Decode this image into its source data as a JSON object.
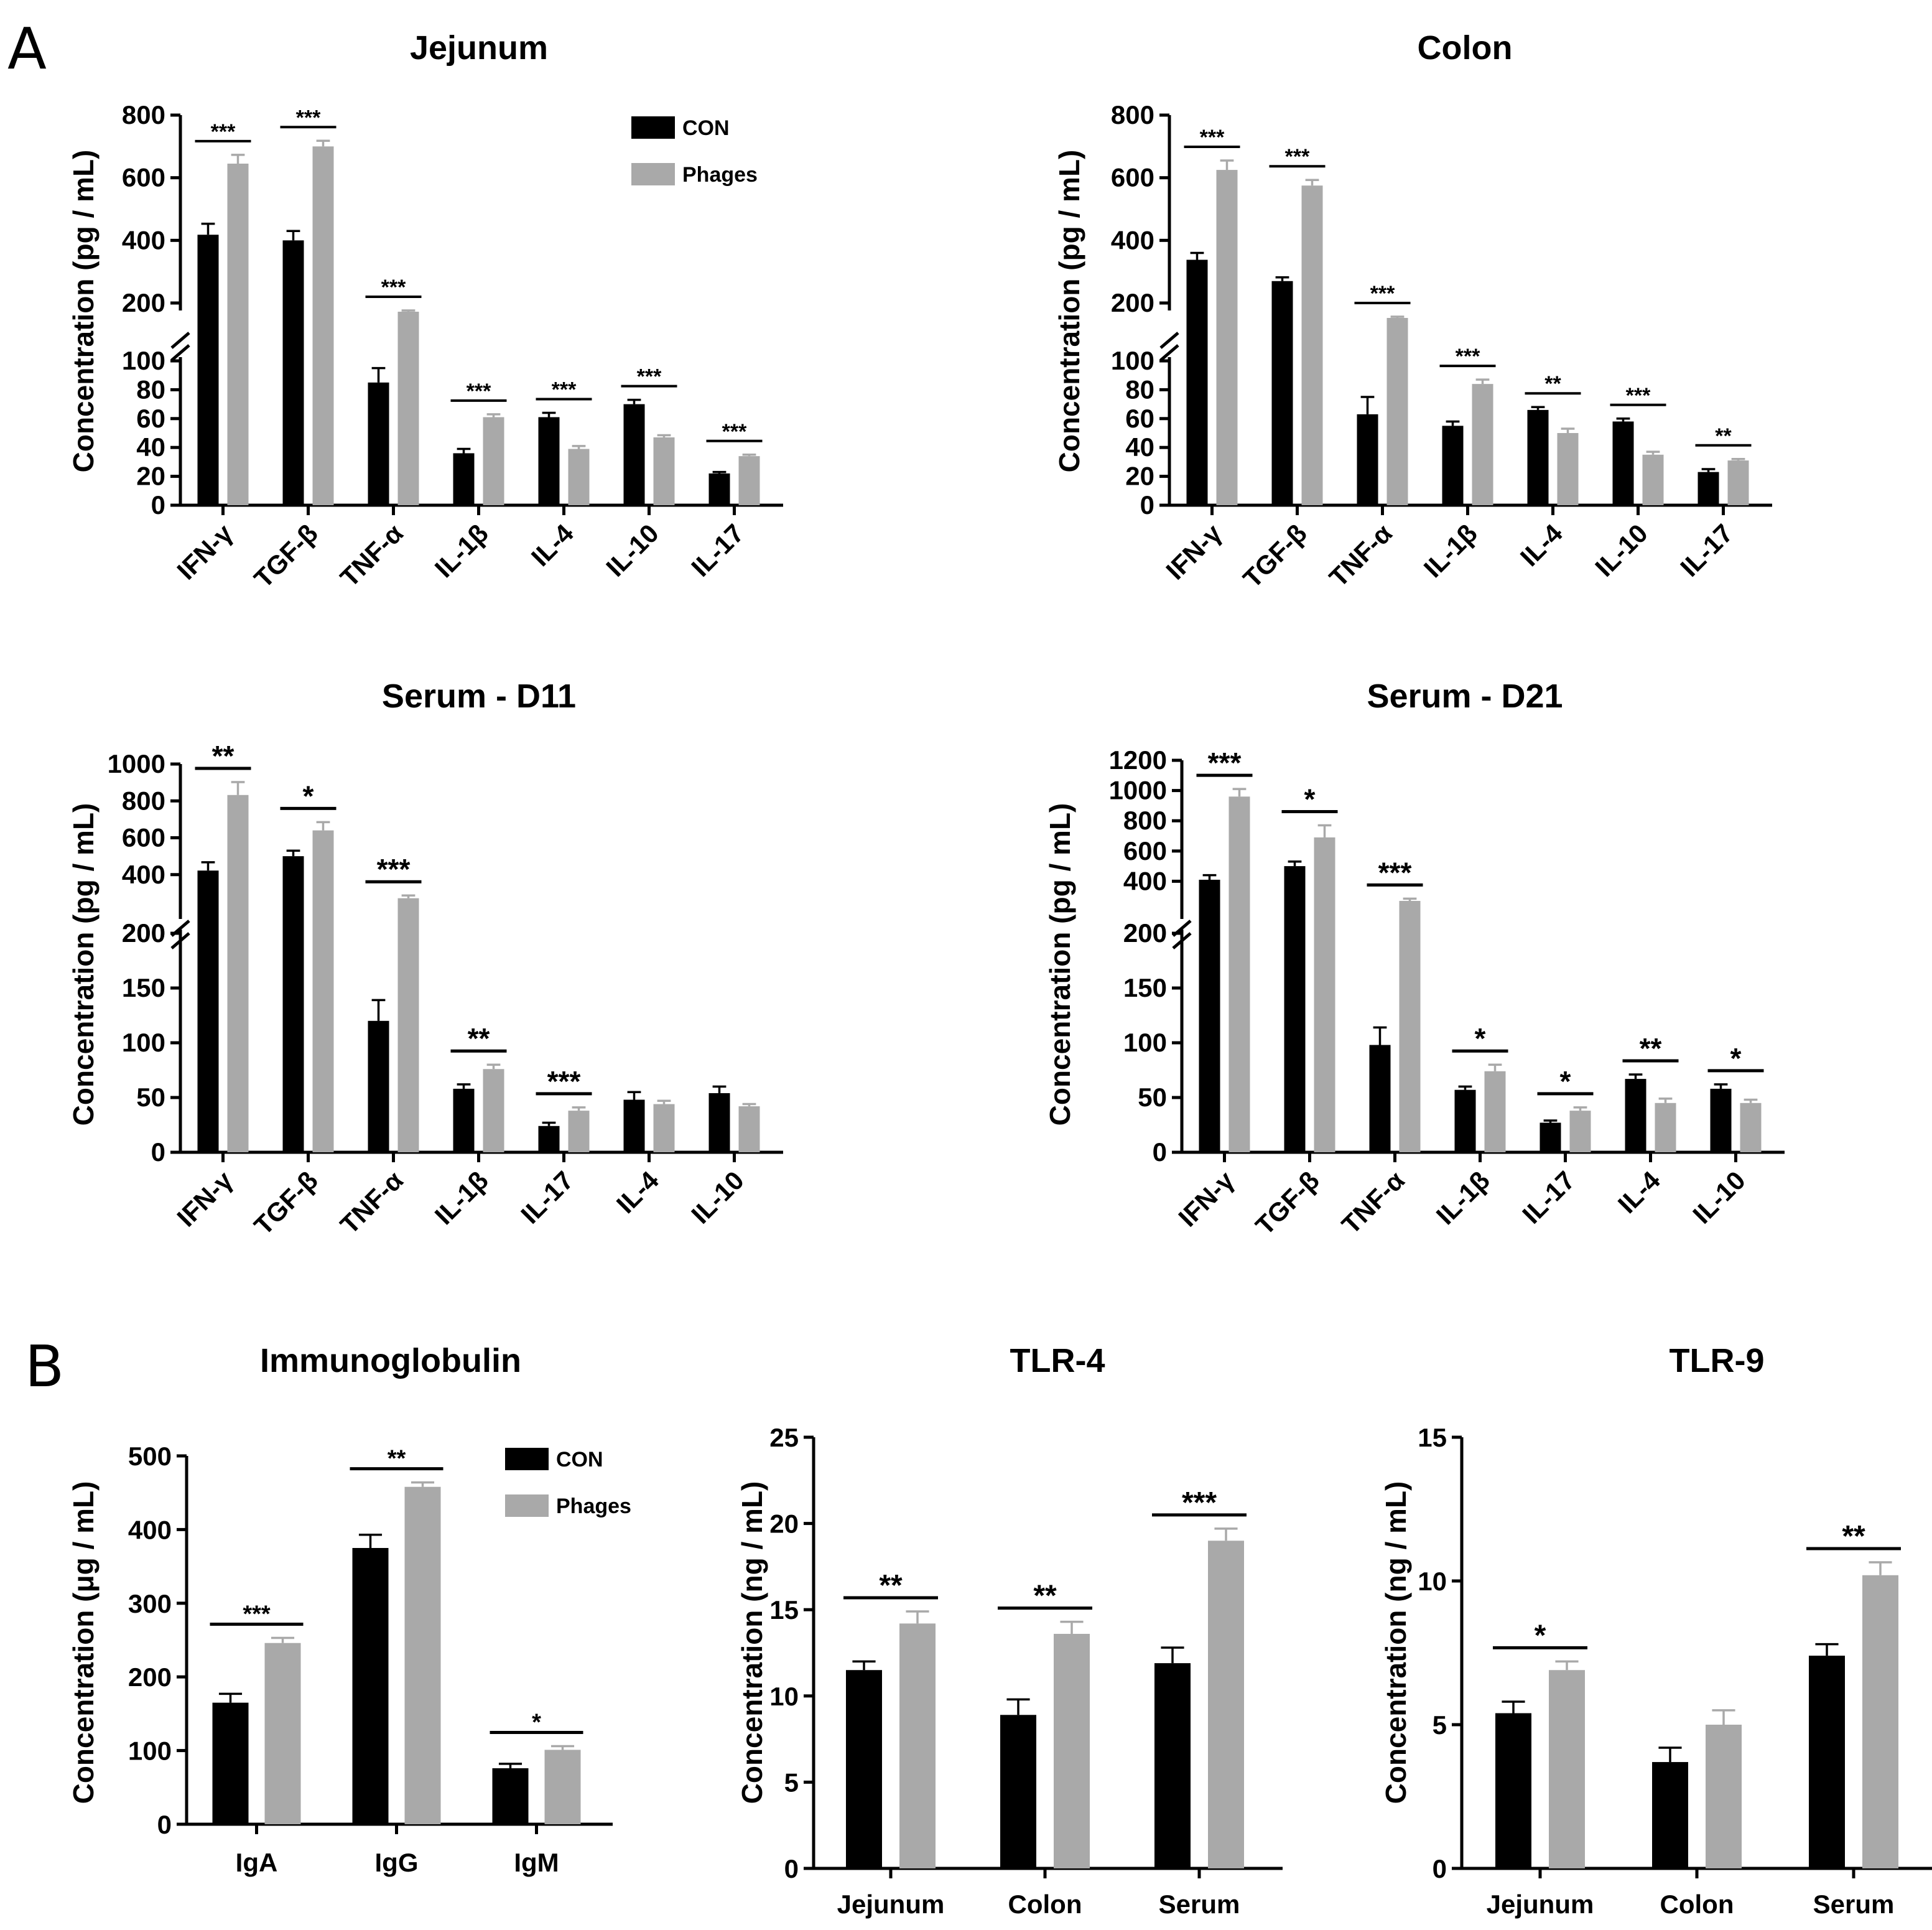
{
  "panel_labels": {
    "a": "A",
    "b": "B"
  },
  "colors": {
    "con": "#000000",
    "phages": "#a9a9a9"
  },
  "legend": {
    "con": "CON",
    "phages": "Phages"
  },
  "chart_data": [
    {
      "id": "jejunum",
      "type": "bar",
      "title": "Jejunum",
      "ylabel": "Concentration (pg / mL)",
      "legend": [
        "CON",
        "Phages"
      ],
      "broken_axis": true,
      "ylim_lower": [
        0,
        100
      ],
      "ylim_upper": [
        100,
        800
      ],
      "yticks_lower": [
        "0",
        "20",
        "40",
        "60",
        "80",
        "100"
      ],
      "yticks_upper": [
        "200",
        "400",
        "600",
        "800"
      ],
      "categories": [
        "IFN-γ",
        "TGF-β",
        "TNF-α",
        "IL-1β",
        "IL-4",
        "IL-10",
        "IL-17"
      ],
      "series": [
        {
          "name": "CON",
          "values": [
            418,
            400,
            85,
            36,
            61,
            70,
            22
          ],
          "errors": [
            35,
            30,
            10,
            3,
            3,
            3,
            1
          ]
        },
        {
          "name": "Phages",
          "values": [
            645,
            700,
            165,
            61,
            39,
            47,
            34
          ],
          "errors": [
            28,
            18,
            5,
            2,
            2,
            1.5,
            1
          ]
        }
      ],
      "significance": [
        "***",
        "***",
        "***",
        "***",
        "***",
        "***",
        "***"
      ]
    },
    {
      "id": "colon",
      "type": "bar",
      "title": "Colon",
      "ylabel": "Concentration (pg / mL)",
      "broken_axis": true,
      "ylim_lower": [
        0,
        100
      ],
      "ylim_upper": [
        100,
        800
      ],
      "yticks_lower": [
        "0",
        "20",
        "40",
        "60",
        "80",
        "100"
      ],
      "yticks_upper": [
        "200",
        "400",
        "600",
        "800"
      ],
      "categories": [
        "IFN-γ",
        "TGF-β",
        "TNF-α",
        "IL-1β",
        "IL-4",
        "IL-10",
        "IL-17"
      ],
      "series": [
        {
          "name": "CON",
          "values": [
            338,
            270,
            63,
            55,
            66,
            58,
            23
          ],
          "errors": [
            22,
            12,
            12,
            3,
            2,
            2,
            2
          ]
        },
        {
          "name": "Phages",
          "values": [
            625,
            575,
            140,
            84,
            50,
            35,
            31
          ],
          "errors": [
            30,
            18,
            5,
            3,
            3,
            2,
            1
          ]
        }
      ],
      "significance": [
        "***",
        "***",
        "***",
        "***",
        "**",
        "***",
        "**"
      ]
    },
    {
      "id": "serum-d11",
      "type": "bar",
      "title": "Serum - D11",
      "ylabel": "Concentration (pg / mL)",
      "broken_axis": true,
      "ylim_lower": [
        0,
        200
      ],
      "ylim_upper": [
        200,
        1000
      ],
      "yticks_lower": [
        "0",
        "50",
        "100",
        "150",
        "200"
      ],
      "yticks_upper": [
        "200",
        "400",
        "600",
        "800",
        "1000"
      ],
      "categories": [
        "IFN-γ",
        "TGF-β",
        "TNF-α",
        "IL-1β",
        "IL-17",
        "IL-4",
        "IL-10"
      ],
      "series": [
        {
          "name": "CON",
          "values": [
            422,
            500,
            120,
            58,
            24,
            48,
            54
          ],
          "errors": [
            45,
            30,
            19,
            4,
            3,
            7,
            6
          ]
        },
        {
          "name": "Phages",
          "values": [
            832,
            640,
            272,
            76,
            38,
            44,
            42
          ],
          "errors": [
            70,
            45,
            15,
            4,
            3,
            3,
            2
          ]
        }
      ],
      "significance": [
        "**",
        "*",
        "***",
        "**",
        "***",
        "",
        ""
      ]
    },
    {
      "id": "serum-d21",
      "type": "bar",
      "title": "Serum - D21",
      "ylabel": "Concentration (pg / mL)",
      "broken_axis": true,
      "ylim_lower": [
        0,
        200
      ],
      "ylim_upper": [
        200,
        1200
      ],
      "yticks_lower": [
        "0",
        "50",
        "100",
        "150",
        "200"
      ],
      "yticks_upper": [
        "200",
        "400",
        "600",
        "800",
        "1000",
        "1200"
      ],
      "categories": [
        "IFN-γ",
        "TGF-β",
        "TNF-α",
        "IL-1β",
        "IL-17",
        "IL-4",
        "IL-10"
      ],
      "series": [
        {
          "name": "CON",
          "values": [
            410,
            500,
            98,
            57,
            27,
            67,
            58
          ],
          "errors": [
            30,
            30,
            16,
            3,
            2,
            4,
            4
          ]
        },
        {
          "name": "Phages",
          "values": [
            960,
            690,
            270,
            74,
            38,
            45,
            45
          ],
          "errors": [
            50,
            80,
            15,
            6,
            3,
            4,
            3
          ]
        }
      ],
      "significance": [
        "***",
        "*",
        "***",
        "*",
        "*",
        "**",
        "*"
      ]
    },
    {
      "id": "immunoglobulin",
      "type": "bar",
      "title": "Immunoglobulin",
      "ylabel": "Concentration (μg / mL)",
      "legend": [
        "CON",
        "Phages"
      ],
      "ylim": [
        0,
        500
      ],
      "yticks": [
        "0",
        "100",
        "200",
        "300",
        "400",
        "500"
      ],
      "categories": [
        "IgA",
        "IgG",
        "IgM"
      ],
      "series": [
        {
          "name": "CON",
          "values": [
            165,
            375,
            76
          ],
          "errors": [
            12,
            18,
            6
          ]
        },
        {
          "name": "Phages",
          "values": [
            246,
            458,
            101
          ],
          "errors": [
            7,
            6,
            5
          ]
        }
      ],
      "significance": [
        "***",
        "**",
        "*"
      ]
    },
    {
      "id": "tlr4",
      "type": "bar",
      "title": "TLR-4",
      "ylabel": "Concentration (ng / mL)",
      "ylim": [
        0,
        25
      ],
      "yticks": [
        "0",
        "5",
        "10",
        "15",
        "20",
        "25"
      ],
      "categories": [
        "Jejunum",
        "Colon",
        "Serum"
      ],
      "series": [
        {
          "name": "CON",
          "values": [
            11.5,
            8.9,
            11.9
          ],
          "errors": [
            0.5,
            0.9,
            0.9
          ]
        },
        {
          "name": "Phages",
          "values": [
            14.2,
            13.6,
            19.0
          ],
          "errors": [
            0.7,
            0.7,
            0.7
          ]
        }
      ],
      "significance": [
        "**",
        "**",
        "***"
      ]
    },
    {
      "id": "tlr9",
      "type": "bar",
      "title": "TLR-9",
      "ylabel": "Concentration (ng / mL)",
      "ylim": [
        0,
        15
      ],
      "yticks": [
        "0",
        "5",
        "10",
        "15"
      ],
      "categories": [
        "Jejunum",
        "Colon",
        "Serum"
      ],
      "series": [
        {
          "name": "CON",
          "values": [
            5.4,
            3.7,
            7.4
          ],
          "errors": [
            0.4,
            0.5,
            0.4
          ]
        },
        {
          "name": "Phages",
          "values": [
            6.9,
            5.0,
            10.2
          ],
          "errors": [
            0.3,
            0.5,
            0.45
          ]
        }
      ],
      "significance": [
        "*",
        "",
        "**"
      ]
    }
  ]
}
